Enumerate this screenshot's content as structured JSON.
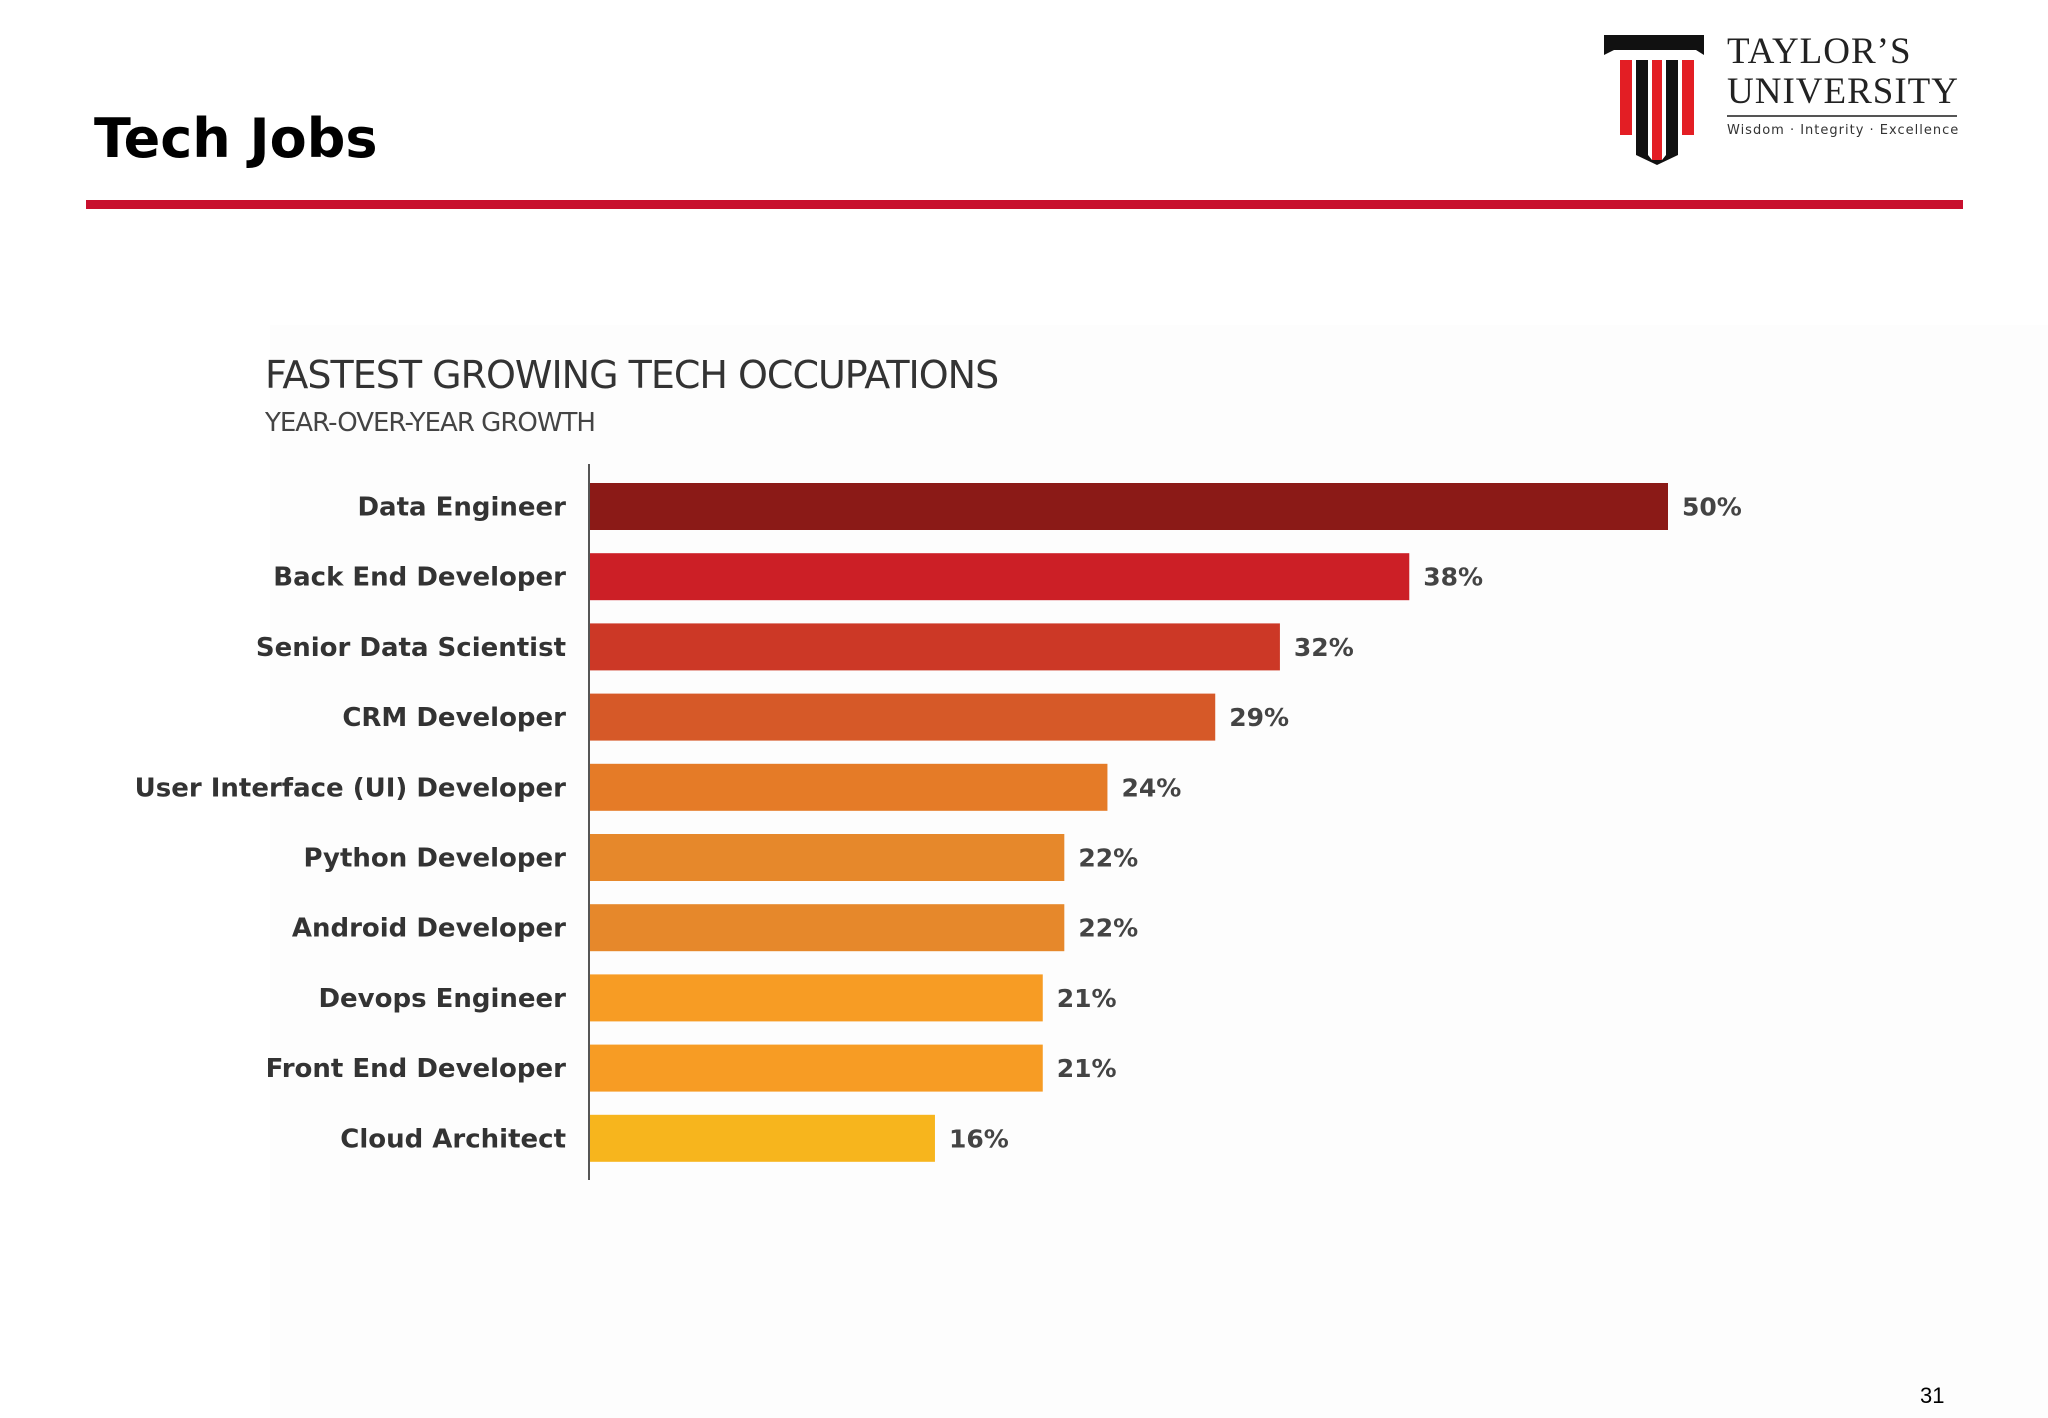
{
  "slide": {
    "title": "Tech Jobs",
    "page_number": "31",
    "accent_color": "#c8102e"
  },
  "logo": {
    "name_line1": "TAYLOR’S",
    "name_line2": "UNIVERSITY",
    "tagline": "Wisdom · Integrity · Excellence"
  },
  "chart_data": {
    "type": "bar",
    "orientation": "horizontal",
    "title": "FASTEST GROWING TECH OCCUPATIONS",
    "subtitle": "YEAR-OVER-YEAR GROWTH",
    "categories": [
      "Data Engineer",
      "Back End Developer",
      "Senior Data Scientist",
      "CRM Developer",
      "User Interface (UI) Developer",
      "Python Developer",
      "Android Developer",
      "Devops Engineer",
      "Front End Developer",
      "Cloud Architect"
    ],
    "values": [
      50,
      38,
      32,
      29,
      24,
      22,
      22,
      21,
      21,
      16
    ],
    "value_labels": [
      "50%",
      "38%",
      "32%",
      "29%",
      "24%",
      "22%",
      "22%",
      "21%",
      "21%",
      "16%"
    ],
    "colors": [
      "#8b1a17",
      "#cc1f26",
      "#cc3826",
      "#d65928",
      "#e57b27",
      "#e6882b",
      "#e6882b",
      "#f79c24",
      "#f79c24",
      "#f7b51d"
    ],
    "xlim": [
      0,
      50
    ],
    "grid": false,
    "legend": "none"
  }
}
